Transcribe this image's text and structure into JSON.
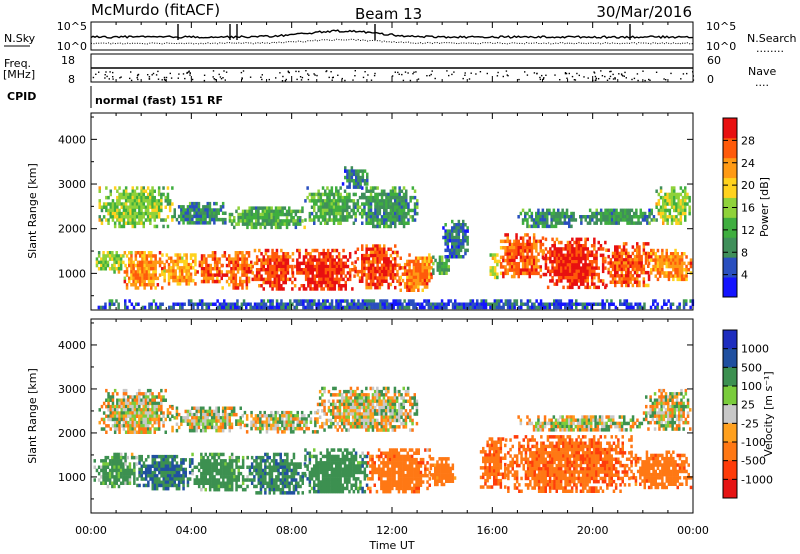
{
  "header": {
    "station": "McMurdo (fitACF)",
    "beam": "Beam 13",
    "date": "30/Mar/2016"
  },
  "top_panels": {
    "nsky_label": "N.Sky",
    "nsearch_label": "N.Search",
    "nsearch_dots": "........",
    "noise_ticks_left": [
      "10^5",
      "10^0"
    ],
    "noise_ticks_right": [
      "10^5",
      "10^0"
    ],
    "freq_label_line1": "Freq.",
    "freq_label_line2": "[MHz]",
    "freq_ticks": [
      "18",
      "8"
    ],
    "nave_label": "Nave",
    "nave_dots": "....",
    "nave_ticks": [
      "60",
      "0"
    ],
    "cpid_label": "CPID",
    "cpid_text": "normal (fast) 151 RF"
  },
  "colors": {
    "power_scale": [
      "#1414ff",
      "#2a4fbf",
      "#3f8f5a",
      "#3fae3f",
      "#8fd23a",
      "#ffd21e",
      "#ff9a14",
      "#ff5a0a",
      "#e81010"
    ],
    "velocity_scale": [
      "#1e2dbe",
      "#2050a0",
      "#3c9050",
      "#7acc3c",
      "#c8c8c8",
      "#ffa01e",
      "#ff7814",
      "#ff3c0a",
      "#e61414"
    ]
  },
  "chart_data": [
    {
      "type": "heatmap",
      "name": "power",
      "ylabel": "Slant Range [km]",
      "yticks": [
        "1000",
        "2000",
        "3000",
        "4000"
      ],
      "ylim": [
        180,
        4590
      ],
      "xlim": [
        0,
        24
      ],
      "colorbar_label": "Power [dB]",
      "colorbar_ticks": [
        "4",
        "8",
        "12",
        "16",
        "20",
        "24",
        "28"
      ],
      "colorbar_range": [
        0,
        32
      ],
      "bands": [
        {
          "x": [
            0.1,
            1.4
          ],
          "y": [
            1050,
            1500
          ],
          "value": 16
        },
        {
          "x": [
            1.3,
            2.8
          ],
          "y": [
            700,
            1500
          ],
          "value": 24
        },
        {
          "x": [
            2.8,
            4.2
          ],
          "y": [
            750,
            1450
          ],
          "value": 22
        },
        {
          "x": [
            4.2,
            5.2
          ],
          "y": [
            850,
            1500
          ],
          "value": 26
        },
        {
          "x": [
            5.2,
            6.4
          ],
          "y": [
            700,
            1500
          ],
          "value": 26
        },
        {
          "x": [
            6.4,
            8.0
          ],
          "y": [
            650,
            1550
          ],
          "value": 28
        },
        {
          "x": [
            8.0,
            10.5
          ],
          "y": [
            650,
            1550
          ],
          "value": 29
        },
        {
          "x": [
            10.5,
            12.3
          ],
          "y": [
            700,
            1650
          ],
          "value": 28
        },
        {
          "x": [
            12.3,
            13.6
          ],
          "y": [
            650,
            1450
          ],
          "value": 25
        },
        {
          "x": [
            13.6,
            14.3
          ],
          "y": [
            1000,
            1400
          ],
          "value": 12
        },
        {
          "x": [
            15.8,
            16.3
          ],
          "y": [
            900,
            1450
          ],
          "value": 18
        },
        {
          "x": [
            16.3,
            18.0
          ],
          "y": [
            900,
            1900
          ],
          "value": 27
        },
        {
          "x": [
            18.0,
            20.5
          ],
          "y": [
            700,
            1800
          ],
          "value": 29
        },
        {
          "x": [
            20.5,
            22.2
          ],
          "y": [
            700,
            1700
          ],
          "value": 27
        },
        {
          "x": [
            22.2,
            23.9
          ],
          "y": [
            850,
            1550
          ],
          "value": 24
        },
        {
          "x": [
            0.3,
            3.2
          ],
          "y": [
            2050,
            2950
          ],
          "value": 15
        },
        {
          "x": [
            3.2,
            5.4
          ],
          "y": [
            2100,
            2600
          ],
          "value": 9
        },
        {
          "x": [
            5.4,
            8.5
          ],
          "y": [
            2050,
            2500
          ],
          "value": 12
        },
        {
          "x": [
            8.5,
            10.5
          ],
          "y": [
            2100,
            2950
          ],
          "value": 12
        },
        {
          "x": [
            10.5,
            13.0
          ],
          "y": [
            2050,
            2950
          ],
          "value": 10
        },
        {
          "x": [
            14.0,
            15.0
          ],
          "y": [
            1400,
            2200
          ],
          "value": 7
        },
        {
          "x": [
            17.0,
            19.5
          ],
          "y": [
            2050,
            2450
          ],
          "value": 9
        },
        {
          "x": [
            19.5,
            22.5
          ],
          "y": [
            2100,
            2450
          ],
          "value": 10
        },
        {
          "x": [
            22.5,
            23.9
          ],
          "y": [
            2150,
            2950
          ],
          "value": 16
        },
        {
          "x": [
            10.0,
            11.0
          ],
          "y": [
            2950,
            3400
          ],
          "value": 8
        },
        {
          "x": [
            0.0,
            24.0
          ],
          "y": [
            230,
            420
          ],
          "value": 5
        }
      ]
    },
    {
      "type": "heatmap",
      "name": "velocity",
      "ylabel": "Slant Range [km]",
      "yticks": [
        "1000",
        "2000",
        "3000",
        "4000"
      ],
      "ylim": [
        180,
        4590
      ],
      "xlim": [
        0,
        24
      ],
      "xlabel": "Time UT",
      "xticks": [
        "00:00",
        "04:00",
        "08:00",
        "12:00",
        "16:00",
        "20:00",
        "00:00"
      ],
      "colorbar_label": "Velocity [m s⁻¹]",
      "colorbar_ticks": [
        "1000",
        "500",
        "100",
        "25",
        "-25",
        "-100",
        "-500",
        "-1000"
      ],
      "colorbar_range": [
        -1200,
        1200
      ],
      "bands": [
        {
          "x": [
            0.1,
            1.8
          ],
          "y": [
            800,
            1550
          ],
          "value": 120
        },
        {
          "x": [
            1.8,
            4.0
          ],
          "y": [
            700,
            1500
          ],
          "value": 300
        },
        {
          "x": [
            4.0,
            6.2
          ],
          "y": [
            700,
            1550
          ],
          "value": 150
        },
        {
          "x": [
            6.2,
            8.5
          ],
          "y": [
            650,
            1550
          ],
          "value": 250
        },
        {
          "x": [
            8.5,
            11.0
          ],
          "y": [
            650,
            1650
          ],
          "value": 180
        },
        {
          "x": [
            11.0,
            13.5
          ],
          "y": [
            650,
            1650
          ],
          "value": -200
        },
        {
          "x": [
            13.5,
            14.5
          ],
          "y": [
            800,
            1450
          ],
          "value": -150
        },
        {
          "x": [
            15.5,
            16.5
          ],
          "y": [
            800,
            1900
          ],
          "value": -250
        },
        {
          "x": [
            16.5,
            21.5
          ],
          "y": [
            700,
            1950
          ],
          "value": -250
        },
        {
          "x": [
            21.5,
            23.9
          ],
          "y": [
            750,
            1600
          ],
          "value": -200
        },
        {
          "x": [
            0.3,
            3.2
          ],
          "y": [
            2000,
            3000
          ],
          "value": 0
        },
        {
          "x": [
            3.2,
            6.0
          ],
          "y": [
            2050,
            2600
          ],
          "value": 10
        },
        {
          "x": [
            6.0,
            9.0
          ],
          "y": [
            2050,
            2500
          ],
          "value": 5
        },
        {
          "x": [
            9.0,
            13.0
          ],
          "y": [
            2050,
            3050
          ],
          "value": 0
        },
        {
          "x": [
            17.0,
            22.0
          ],
          "y": [
            2050,
            2400
          ],
          "value": 10
        },
        {
          "x": [
            22.0,
            23.9
          ],
          "y": [
            2100,
            3000
          ],
          "value": 0
        }
      ]
    }
  ]
}
